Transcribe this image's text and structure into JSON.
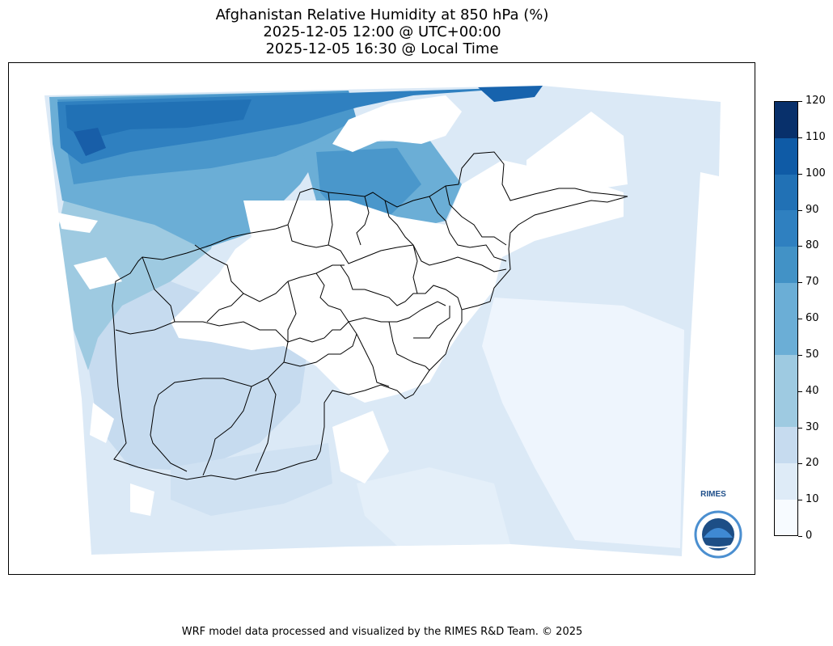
{
  "title": {
    "line1": "Afghanistan Relative Humidity at 850 hPa (%)",
    "line2": "2025-12-05 12:00 @ UTC+00:00",
    "line3": "2025-12-05 16:30 @ Local Time"
  },
  "colorbar": {
    "ticks": [
      "0",
      "10",
      "20",
      "30",
      "40",
      "50",
      "60",
      "70",
      "80",
      "90",
      "100",
      "110",
      "120"
    ],
    "colors": [
      "#f7fbff",
      "#deebf7",
      "#c6dbef",
      "#9ecae1",
      "#9ecae1",
      "#6baed6",
      "#6baed6",
      "#4292c6",
      "#2f80c0",
      "#2171b5",
      "#0f5ba6",
      "#08306b"
    ]
  },
  "logo": {
    "text": "RIMES"
  },
  "footer": "WRF model data processed and visualized by the RIMES R&D Team. © 2025"
}
